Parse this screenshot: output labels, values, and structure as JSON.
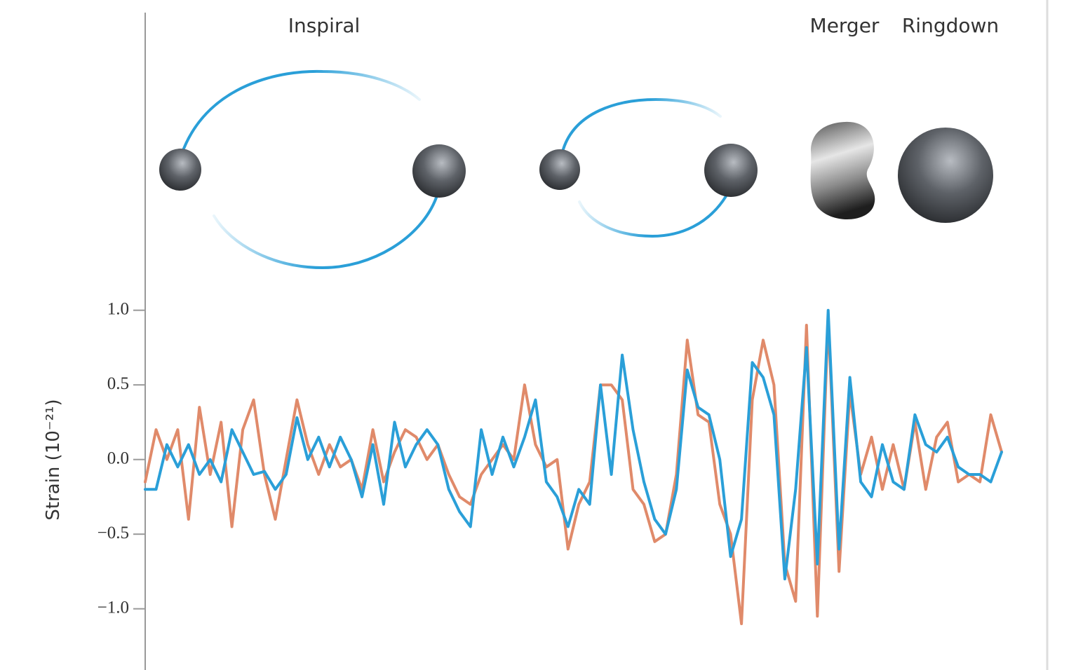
{
  "chart_data": {
    "type": "line",
    "annotations": [
      "Inspiral",
      "Merger",
      "Ringdown"
    ],
    "y_label": "Strain (10⁻²¹)",
    "ylim": [
      -1.41,
      1.13
    ],
    "yticks": [
      {
        "value": 1,
        "label": "1.0"
      },
      {
        "value": 0.5,
        "label": "0.5"
      },
      {
        "value": 0,
        "label": "0.0"
      },
      {
        "value": -0.5,
        "label": "−0.5"
      },
      {
        "value": -1,
        "label": "−1.0"
      }
    ],
    "series": [
      {
        "color": "#e08a6a",
        "values": [
          -0.15,
          0.2,
          0.0,
          0.2,
          -0.4,
          0.35,
          -0.1,
          0.25,
          -0.45,
          0.2,
          0.4,
          -0.1,
          -0.4,
          0.0,
          0.4,
          0.1,
          -0.1,
          0.1,
          -0.05,
          0.0,
          -0.2,
          0.2,
          -0.15,
          0.05,
          0.2,
          0.15,
          0.0,
          0.1,
          -0.1,
          -0.25,
          -0.3,
          -0.1,
          0.0,
          0.1,
          0.0,
          0.5,
          0.1,
          -0.05,
          0.0,
          -0.6,
          -0.3,
          -0.15,
          0.5,
          0.5,
          0.4,
          -0.2,
          -0.3,
          -0.55,
          -0.5,
          -0.1,
          0.8,
          0.3,
          0.25,
          -0.3,
          -0.5,
          -1.1,
          0.4,
          0.8,
          0.5,
          -0.7,
          -0.95,
          0.9,
          -1.05,
          0.95,
          -0.75,
          0.45,
          -0.1,
          0.15,
          -0.2,
          0.1,
          -0.2,
          0.25,
          -0.2,
          0.15,
          0.25,
          -0.15,
          -0.1,
          -0.15,
          0.3,
          0.05
        ]
      },
      {
        "color": "#2a9fd8",
        "values": [
          -0.2,
          -0.2,
          0.1,
          -0.05,
          0.1,
          -0.1,
          0.0,
          -0.15,
          0.2,
          0.05,
          -0.1,
          -0.08,
          -0.2,
          -0.1,
          0.28,
          0.0,
          0.15,
          -0.05,
          0.15,
          0.0,
          -0.25,
          0.1,
          -0.3,
          0.25,
          -0.05,
          0.1,
          0.2,
          0.1,
          -0.2,
          -0.35,
          -0.45,
          0.2,
          -0.1,
          0.15,
          -0.05,
          0.15,
          0.4,
          -0.15,
          -0.25,
          -0.45,
          -0.2,
          -0.3,
          0.5,
          -0.1,
          0.7,
          0.2,
          -0.15,
          -0.4,
          -0.5,
          -0.2,
          0.6,
          0.35,
          0.3,
          0.0,
          -0.65,
          -0.4,
          0.65,
          0.55,
          0.3,
          -0.8,
          -0.2,
          0.75,
          -0.7,
          1.0,
          -0.6,
          0.55,
          -0.15,
          -0.25,
          0.1,
          -0.15,
          -0.2,
          0.3,
          0.1,
          0.05,
          0.15,
          -0.05,
          -0.1,
          -0.1,
          -0.15,
          0.05
        ]
      }
    ]
  }
}
